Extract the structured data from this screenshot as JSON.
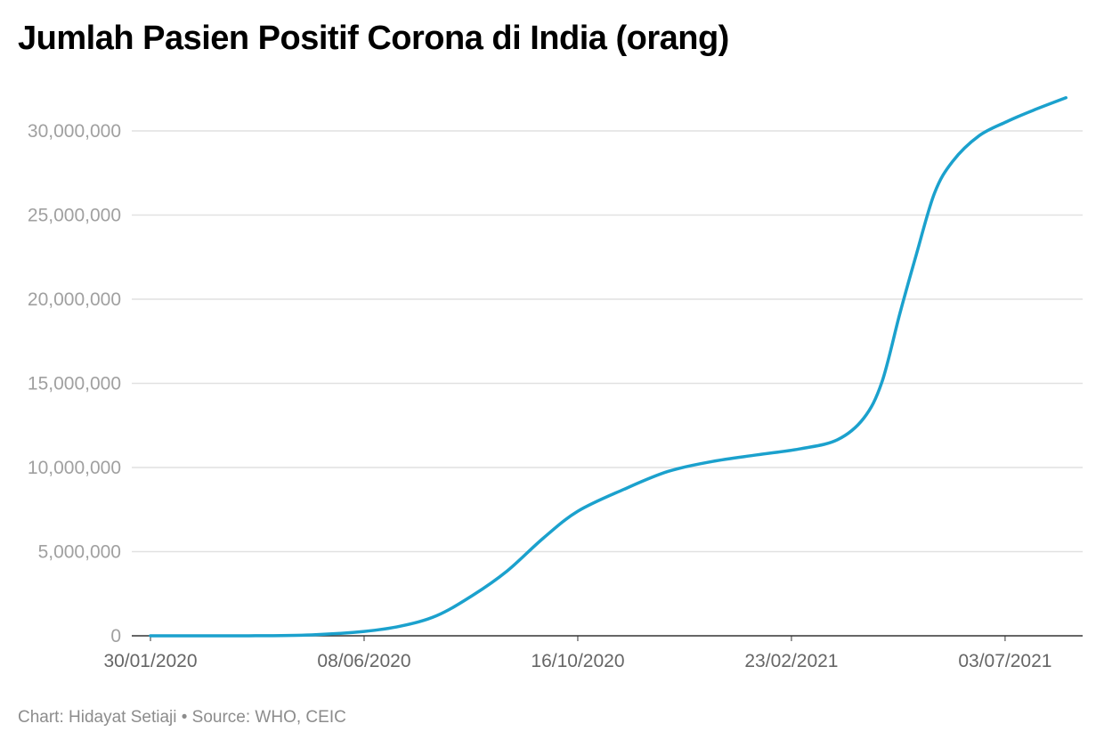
{
  "chart_data": {
    "type": "line",
    "title": "Jumlah Pasien Positif Corona di India (orang)",
    "footer": "Chart: Hidayat Setiaji • Source: WHO, CEIC",
    "xlabel": "",
    "ylabel": "",
    "ylim": [
      0,
      32000000
    ],
    "grid": true,
    "y_ticks": [
      {
        "value": 0,
        "label": "0"
      },
      {
        "value": 5000000,
        "label": "5,000,000"
      },
      {
        "value": 10000000,
        "label": "10,000,000"
      },
      {
        "value": 15000000,
        "label": "15,000,000"
      },
      {
        "value": 20000000,
        "label": "20,000,000"
      },
      {
        "value": 25000000,
        "label": "25,000,000"
      },
      {
        "value": 30000000,
        "label": "30,000,000"
      }
    ],
    "x_ticks": [
      {
        "date": "2020-01-30",
        "label": "30/01/2020"
      },
      {
        "date": "2020-06-08",
        "label": "08/06/2020"
      },
      {
        "date": "2020-10-16",
        "label": "16/10/2020"
      },
      {
        "date": "2021-02-23",
        "label": "23/02/2021"
      },
      {
        "date": "2021-07-03",
        "label": "03/07/2021"
      }
    ],
    "series": [
      {
        "name": "Jumlah Pasien Positif",
        "color": "#1ba1cd",
        "points": [
          [
            "2020-01-30",
            1
          ],
          [
            "2020-03-30",
            1200
          ],
          [
            "2020-05-07",
            56000
          ],
          [
            "2020-06-08",
            260000
          ],
          [
            "2020-06-30",
            570000
          ],
          [
            "2020-07-22",
            1190000
          ],
          [
            "2020-08-13",
            2400000
          ],
          [
            "2020-09-03",
            3850000
          ],
          [
            "2020-09-25",
            5800000
          ],
          [
            "2020-10-16",
            7400000
          ],
          [
            "2020-11-13",
            8700000
          ],
          [
            "2020-12-10",
            9770000
          ],
          [
            "2021-01-06",
            10360000
          ],
          [
            "2021-02-02",
            10750000
          ],
          [
            "2021-03-01",
            11120000
          ],
          [
            "2021-03-23",
            11650000
          ],
          [
            "2021-04-08",
            12930000
          ],
          [
            "2021-04-19",
            15060000
          ],
          [
            "2021-04-30",
            19160000
          ],
          [
            "2021-05-10",
            22660000
          ],
          [
            "2021-05-21",
            26290000
          ],
          [
            "2021-06-01",
            28180000
          ],
          [
            "2021-06-17",
            29700000
          ],
          [
            "2021-07-04",
            30550000
          ],
          [
            "2021-07-20",
            31220000
          ],
          [
            "2021-08-09",
            31970000
          ]
        ]
      }
    ]
  }
}
